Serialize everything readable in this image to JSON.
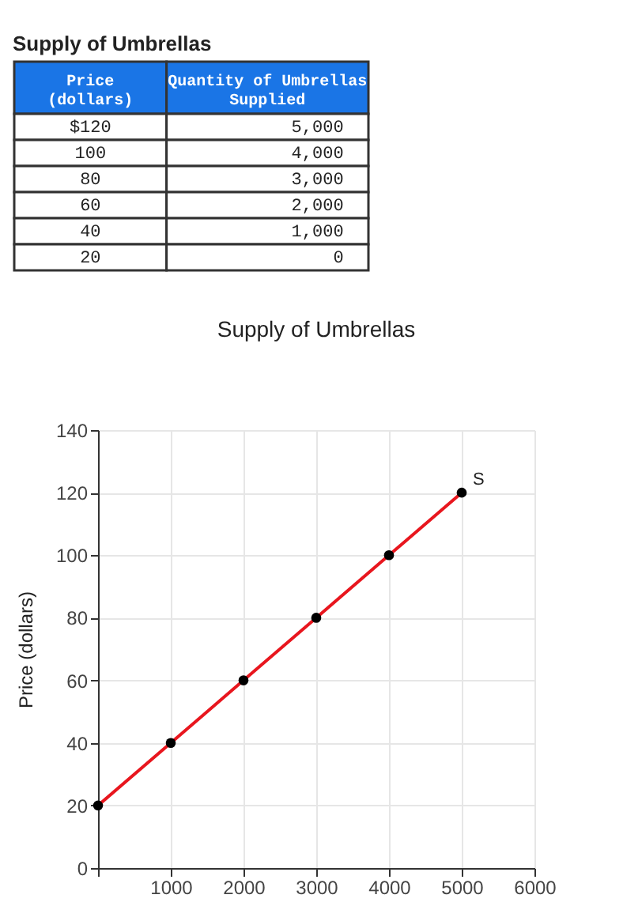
{
  "chart_data": {
    "type": "line",
    "title": "Supply of Umbrellas",
    "ylabel": "Price (dollars)",
    "x": [
      0,
      1000,
      2000,
      3000,
      4000,
      5000
    ],
    "series": [
      {
        "name": "S",
        "color": "#e8161e",
        "values": [
          20,
          40,
          60,
          80,
          100,
          120
        ]
      }
    ],
    "xlim": [
      0,
      6000
    ],
    "xticks": [
      {
        "value": 0,
        "label": null
      },
      1000,
      2000,
      3000,
      4000,
      5000,
      6000
    ],
    "ylim": [
      0,
      140
    ],
    "yticks": [
      0,
      20,
      40,
      60,
      80,
      100,
      120,
      140
    ],
    "grid": true,
    "marker": "circle",
    "line_style": "solid",
    "annotations": [
      "Supply of Umbrellas",
      "Price\n(dollars)",
      "Quantity of Umbrellas\nSupplied",
      "$120",
      "5,000",
      "100",
      "4,000",
      "80",
      "3,000",
      "60",
      "2,000",
      "40",
      "1,000",
      "20",
      "0"
    ]
  }
}
